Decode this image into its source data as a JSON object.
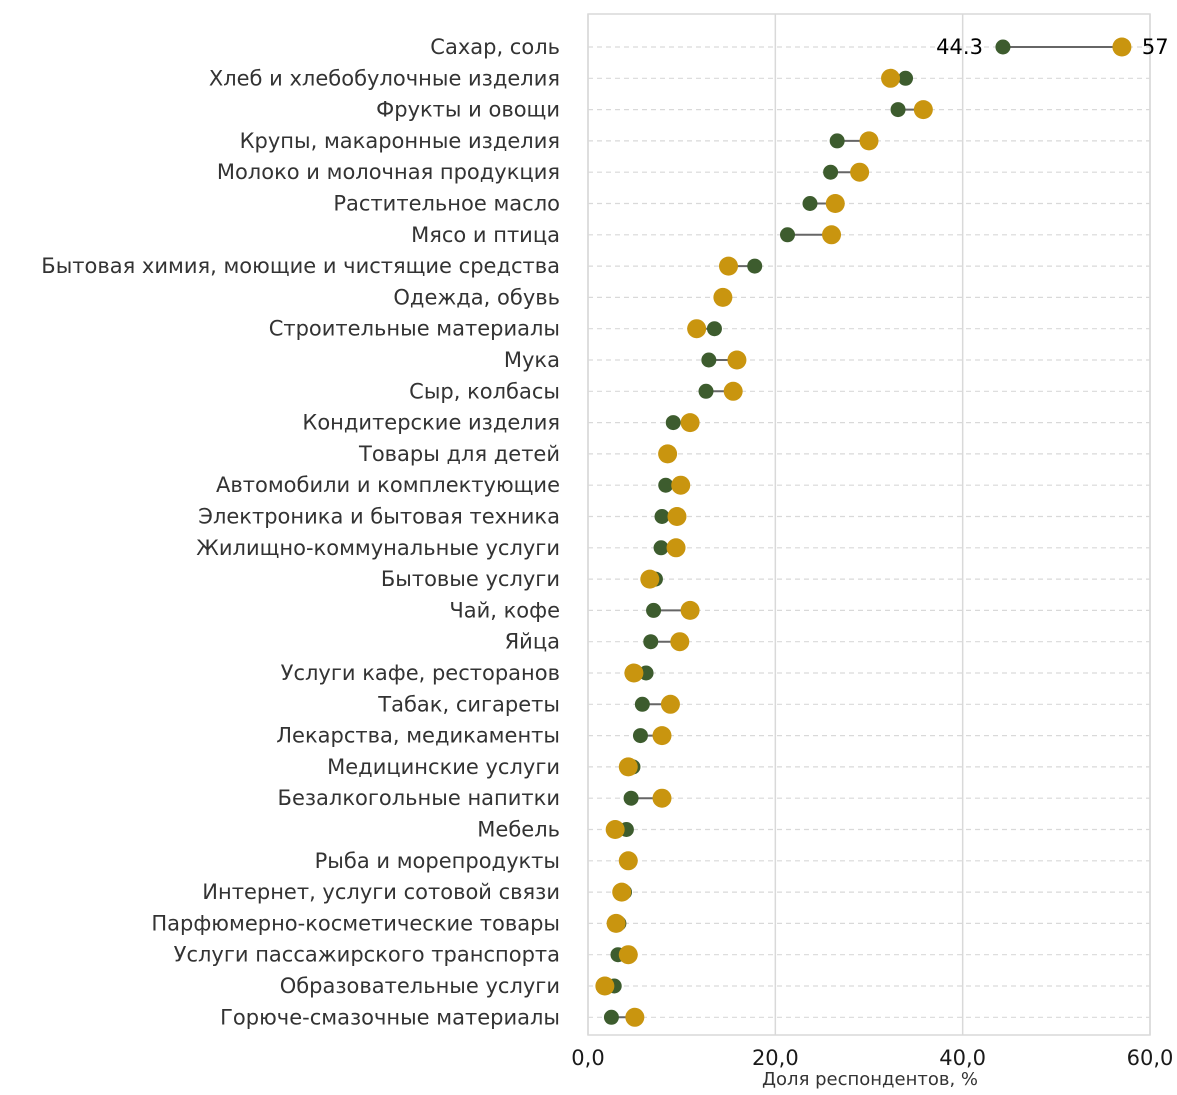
{
  "chart_data": {
    "type": "scatter",
    "subtype": "dumbbell",
    "title": "",
    "xlabel": "Доля респондентов, %",
    "ylabel": "",
    "xlim": [
      0,
      60
    ],
    "xticks": [
      "0,0",
      "20,0",
      "40,0",
      "60,0"
    ],
    "xtick_values": [
      0,
      20,
      40,
      60
    ],
    "grid": {
      "vertical": "solid",
      "horizontal": "dashed"
    },
    "legend": "none",
    "colors": {
      "series_a": "#3d5c2e",
      "series_b": "#c9950f",
      "connector": "#666666",
      "grid": "#d9d9d9"
    },
    "categories": [
      "Сахар, соль",
      "Хлеб и хлебобулочные изделия",
      "Фрукты и овощи",
      "Крупы, макаронные изделия",
      "Молоко и молочная продукция",
      "Растительное масло",
      "Мясо и птица",
      "Бытовая химия, моющие и чистящие средства",
      "Одежда, обувь",
      "Строительные материалы",
      "Мука",
      "Сыр, колбасы",
      "Кондитерские изделия",
      "Товары для детей",
      "Автомобили и комплектующие",
      "Электроника и бытовая техника",
      "Жилищно-коммунальные услуги",
      "Бытовые услуги",
      "Чай, кофе",
      "Яйца",
      "Услуги кафе, ресторанов",
      "Табак, сигареты",
      "Лекарства, медикаменты",
      "Медицинские услуги",
      "Безалкогольные напитки",
      "Мебель",
      "Рыба и морепродукты",
      "Интернет, услуги сотовой связи",
      "Парфюмерно-косметические товары",
      "Услуги пассажирского транспорта",
      "Образовательные услуги",
      "Горюче-смазочные материалы"
    ],
    "series": [
      {
        "values": [
          44.3,
          33.9,
          33.1,
          26.6,
          25.9,
          23.7,
          21.3,
          17.8,
          14.5,
          13.5,
          12.9,
          12.6,
          9.1,
          8.4,
          8.3,
          7.9,
          7.8,
          7.2,
          7.0,
          6.7,
          6.2,
          5.8,
          5.6,
          4.8,
          4.6,
          4.1,
          4.2,
          3.9,
          3.3,
          3.2,
          2.8,
          2.5
        ]
      },
      {
        "values": [
          57.0,
          32.3,
          35.8,
          30.0,
          29.0,
          26.4,
          26.0,
          15.0,
          14.4,
          11.6,
          15.9,
          15.5,
          10.9,
          8.5,
          9.9,
          9.5,
          9.4,
          6.6,
          10.9,
          9.8,
          4.9,
          8.8,
          7.9,
          4.3,
          7.9,
          2.9,
          4.3,
          3.6,
          3.0,
          4.3,
          1.8,
          5.0
        ]
      }
    ],
    "data_labels": {
      "series_a_first": "44.3",
      "series_b_first": "57"
    }
  }
}
